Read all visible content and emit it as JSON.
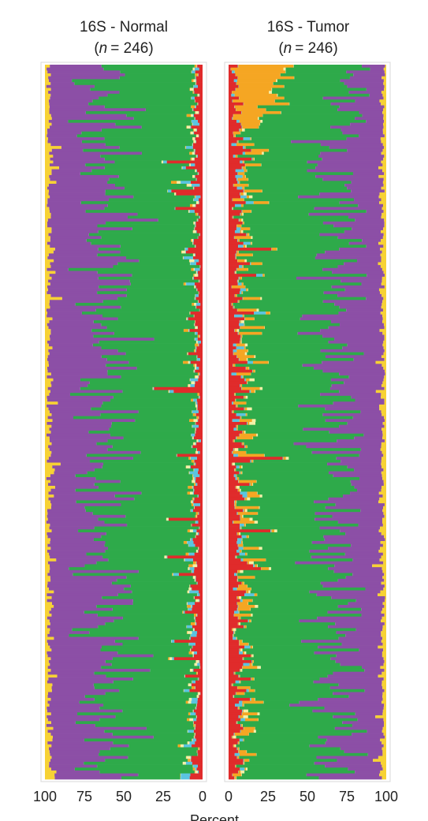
{
  "chart_data": [
    {
      "type": "bar",
      "orientation": "horizontal",
      "stacked": true,
      "title": "16S - Normal",
      "subtitle": "(n = 246)",
      "n_label": "n",
      "n_value": "= 246)",
      "n_prefix": "(",
      "samples": 246,
      "x_direction": "reversed",
      "xlim": [
        0,
        100
      ],
      "xticks": [
        "100",
        "75",
        "50",
        "25",
        "0"
      ],
      "xlabel": "Percent",
      "categories_order": [
        "red",
        "cyan",
        "lightyellow",
        "orange",
        "green",
        "purple",
        "yellow"
      ],
      "typical_values": {
        "red": 4,
        "cyan": 1,
        "lightyellow": 0.5,
        "orange": 0.5,
        "green": 55,
        "purple": 36,
        "yellow": 3
      }
    },
    {
      "type": "bar",
      "orientation": "horizontal",
      "stacked": true,
      "title": "16S - Tumor",
      "subtitle": "(n = 246)",
      "n_label": "n",
      "n_value": "= 246)",
      "n_prefix": "(",
      "samples": 246,
      "x_direction": "normal",
      "xlim": [
        0,
        100
      ],
      "xticks": [
        "0",
        "25",
        "50",
        "75",
        "100"
      ],
      "xlabel": "Percent",
      "categories_order": [
        "red",
        "cyan",
        "orange",
        "lightyellow",
        "green",
        "purple",
        "yellow"
      ],
      "typical_values": {
        "red": 6,
        "cyan": 1,
        "orange": 3,
        "lightyellow": 0.5,
        "green": 57,
        "purple": 30,
        "yellow": 2.5
      }
    }
  ],
  "colors": {
    "purple": "#8c4fa6",
    "green": "#2eaa4a",
    "red": "#e02b2b",
    "cyan": "#5bc4e0",
    "orange": "#f5a623",
    "yellow": "#f7d234",
    "lightyellow": "#f4f0a8",
    "pink": "#f2b6c6"
  },
  "axis_label": "Percent"
}
